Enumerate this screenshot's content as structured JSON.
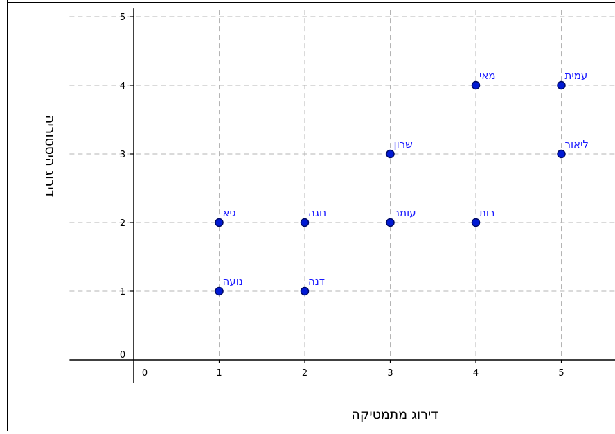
{
  "chart_data": {
    "type": "scatter",
    "xlabel": "דירוג מתמטיקה",
    "ylabel": "דירוג היסטוריה",
    "xlim": [
      -0.75,
      5.65
    ],
    "ylim": [
      -0.15,
      5.1
    ],
    "x_ticks": [
      0,
      1,
      2,
      3,
      4,
      5
    ],
    "y_ticks": [
      0,
      1,
      2,
      3,
      4,
      5
    ],
    "grid": true,
    "point_color": "#0019d4",
    "label_color": "#1a1aff",
    "points": [
      {
        "name": "נועה",
        "x": 1,
        "y": 1
      },
      {
        "name": "גיא",
        "x": 1,
        "y": 2
      },
      {
        "name": "דנה",
        "x": 2,
        "y": 1
      },
      {
        "name": "נוגה",
        "x": 2,
        "y": 2
      },
      {
        "name": "עומר",
        "x": 3,
        "y": 2
      },
      {
        "name": "שרון",
        "x": 3,
        "y": 3
      },
      {
        "name": "רות",
        "x": 4,
        "y": 2
      },
      {
        "name": "מאי",
        "x": 4,
        "y": 4
      },
      {
        "name": "ליאור",
        "x": 5,
        "y": 3
      },
      {
        "name": "עמית",
        "x": 5,
        "y": 4
      }
    ]
  }
}
